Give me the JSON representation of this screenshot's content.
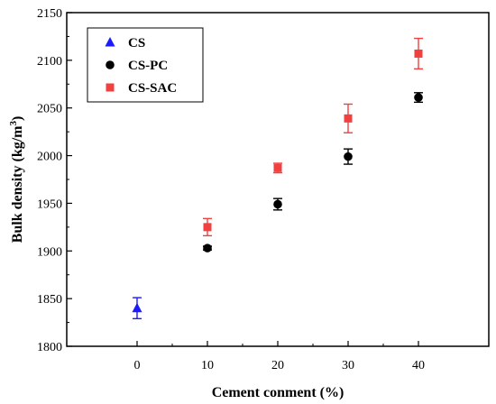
{
  "chart_data": {
    "type": "scatter",
    "xlabel": "Cement conment (%)",
    "ylabel_main": "Bulk density (kg/m",
    "ylabel_sup": "3",
    "ylabel_close": ")",
    "xlim": [
      -10,
      50
    ],
    "ylim": [
      1800,
      2150
    ],
    "xticks": [
      0,
      10,
      20,
      30,
      40
    ],
    "yticks": [
      1800,
      1850,
      1900,
      1950,
      2000,
      2050,
      2100,
      2150
    ],
    "grid": false,
    "legend_position": "top-left",
    "series": [
      {
        "name": "CS",
        "marker": "triangle",
        "color": "#1a1aff",
        "points": [
          {
            "x": 0,
            "y": 1840,
            "err": 11
          }
        ]
      },
      {
        "name": "CS-PC",
        "marker": "circle",
        "color": "#000000",
        "points": [
          {
            "x": 10,
            "y": 1903,
            "err": 2
          },
          {
            "x": 20,
            "y": 1949,
            "err": 6
          },
          {
            "x": 30,
            "y": 1999,
            "err": 8
          },
          {
            "x": 40,
            "y": 2061,
            "err": 5
          }
        ]
      },
      {
        "name": "CS-SAC",
        "marker": "square",
        "color": "#f04040",
        "points": [
          {
            "x": 10,
            "y": 1925,
            "err": 9
          },
          {
            "x": 20,
            "y": 1987,
            "err": 5
          },
          {
            "x": 30,
            "y": 2039,
            "err": 15
          },
          {
            "x": 40,
            "y": 2107,
            "err": 16
          }
        ]
      }
    ]
  }
}
